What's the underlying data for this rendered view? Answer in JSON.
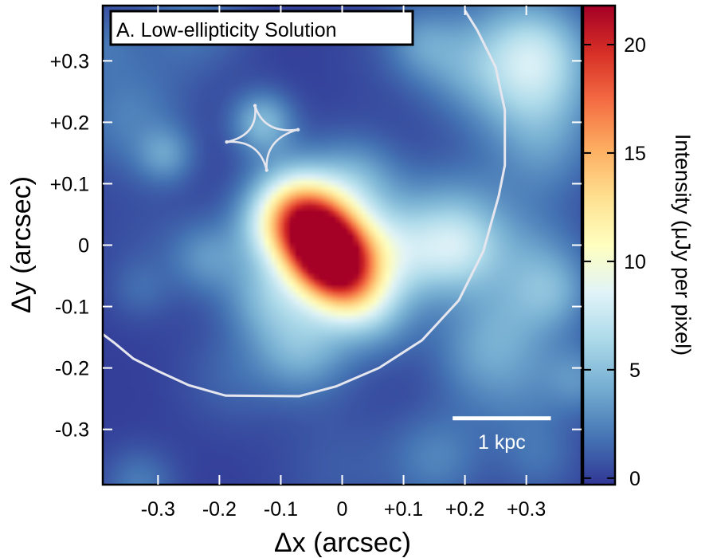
{
  "chart_data": {
    "type": "heatmap",
    "panel_title": "A. Low-ellipticity Solution",
    "xlabel": "Δx (arcsec)",
    "ylabel": "Δy (arcsec)",
    "xlim": [
      -0.39,
      0.39
    ],
    "ylim": [
      -0.39,
      0.39
    ],
    "x_ticks": [
      {
        "value": -0.3,
        "label": "-0.3"
      },
      {
        "value": -0.2,
        "label": "-0.2"
      },
      {
        "value": -0.1,
        "label": "-0.1"
      },
      {
        "value": 0,
        "label": "0"
      },
      {
        "value": 0.1,
        "label": "+0.1"
      },
      {
        "value": 0.2,
        "label": "+0.2"
      },
      {
        "value": 0.3,
        "label": "+0.3"
      }
    ],
    "y_ticks": [
      {
        "value": 0.3,
        "label": "+0.3"
      },
      {
        "value": 0.2,
        "label": "+0.2"
      },
      {
        "value": 0.1,
        "label": "+0.1"
      },
      {
        "value": 0,
        "label": "0"
      },
      {
        "value": -0.1,
        "label": "-0.1"
      },
      {
        "value": -0.2,
        "label": "-0.2"
      },
      {
        "value": -0.3,
        "label": "-0.3"
      }
    ],
    "colorbar": {
      "label": "Intensity (μJy per pixel)",
      "range": [
        -0.3,
        21.8
      ],
      "ticks": [
        {
          "value": 0,
          "label": "0"
        },
        {
          "value": 5,
          "label": "5"
        },
        {
          "value": 10,
          "label": "10"
        },
        {
          "value": 15,
          "label": "15"
        },
        {
          "value": 20,
          "label": "20"
        }
      ],
      "colormap": [
        "#313695",
        "#4575b4",
        "#74add1",
        "#abd9e9",
        "#e0f3f8",
        "#ffffbf",
        "#fee090",
        "#fdae61",
        "#f46d43",
        "#d73027",
        "#a50026"
      ]
    },
    "source": {
      "peak_x": -0.025,
      "peak_y": -0.01,
      "peak_intensity": 21.5,
      "semi_major": 0.07,
      "semi_minor": 0.045,
      "position_angle_deg": -55
    },
    "critical_curve": [
      [
        -0.39,
        -0.145
      ],
      [
        -0.37,
        -0.16
      ],
      [
        -0.34,
        -0.185
      ],
      [
        -0.3,
        -0.205
      ],
      [
        -0.25,
        -0.228
      ],
      [
        -0.19,
        -0.245
      ],
      [
        -0.07,
        -0.246
      ],
      [
        -0.01,
        -0.23
      ],
      [
        0.06,
        -0.2
      ],
      [
        0.13,
        -0.155
      ],
      [
        0.19,
        -0.09
      ],
      [
        0.23,
        -0.01
      ],
      [
        0.255,
        0.08
      ],
      [
        0.265,
        0.13
      ],
      [
        0.265,
        0.22
      ],
      [
        0.25,
        0.29
      ],
      [
        0.22,
        0.35
      ],
      [
        0.2,
        0.382
      ]
    ],
    "caustic_cusps": [
      [
        -0.142,
        0.227
      ],
      [
        -0.072,
        0.188
      ],
      [
        -0.123,
        0.122
      ],
      [
        -0.188,
        0.168
      ]
    ],
    "scale_bar": {
      "x_start": 0.18,
      "x_end": 0.34,
      "y": -0.282,
      "label": "1 kpc"
    }
  }
}
